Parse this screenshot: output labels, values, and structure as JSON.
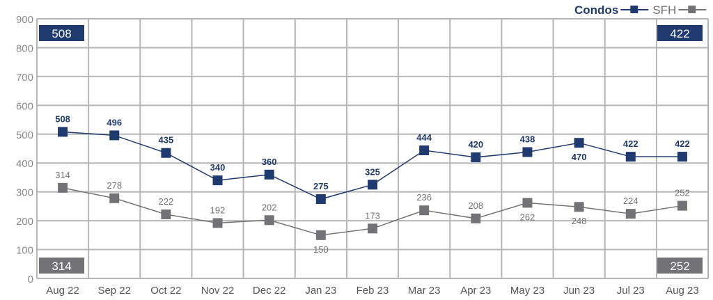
{
  "chart_data": {
    "type": "line",
    "title": "",
    "xlabel": "",
    "ylabel": "",
    "ylim": [
      0,
      900
    ],
    "yticks": [
      0,
      100,
      200,
      300,
      400,
      500,
      600,
      700,
      800,
      900
    ],
    "grid": true,
    "legend_position": "top-right",
    "categories": [
      "Aug 22",
      "Sep 22",
      "Oct 22",
      "Nov 22",
      "Dec 22",
      "Jan 23",
      "Feb 23",
      "Mar 23",
      "Apr 23",
      "May 23",
      "Jun 23",
      "Jul 23",
      "Aug 23"
    ],
    "series": [
      {
        "name": "Condos",
        "color": "#1f3a6e",
        "values": [
          508,
          496,
          435,
          340,
          360,
          275,
          325,
          444,
          420,
          438,
          470,
          422,
          422
        ],
        "label_below": [
          false,
          false,
          false,
          false,
          false,
          false,
          false,
          false,
          false,
          false,
          true,
          false,
          false
        ]
      },
      {
        "name": "SFH",
        "color": "#737377",
        "values": [
          314,
          278,
          222,
          192,
          202,
          150,
          173,
          236,
          208,
          262,
          248,
          224,
          252
        ],
        "label_below": [
          false,
          false,
          false,
          false,
          false,
          true,
          false,
          false,
          false,
          true,
          true,
          false,
          false
        ]
      }
    ],
    "callouts": {
      "condos_start": "508",
      "condos_end": "422",
      "sfh_start": "314",
      "sfh_end": "252"
    }
  }
}
